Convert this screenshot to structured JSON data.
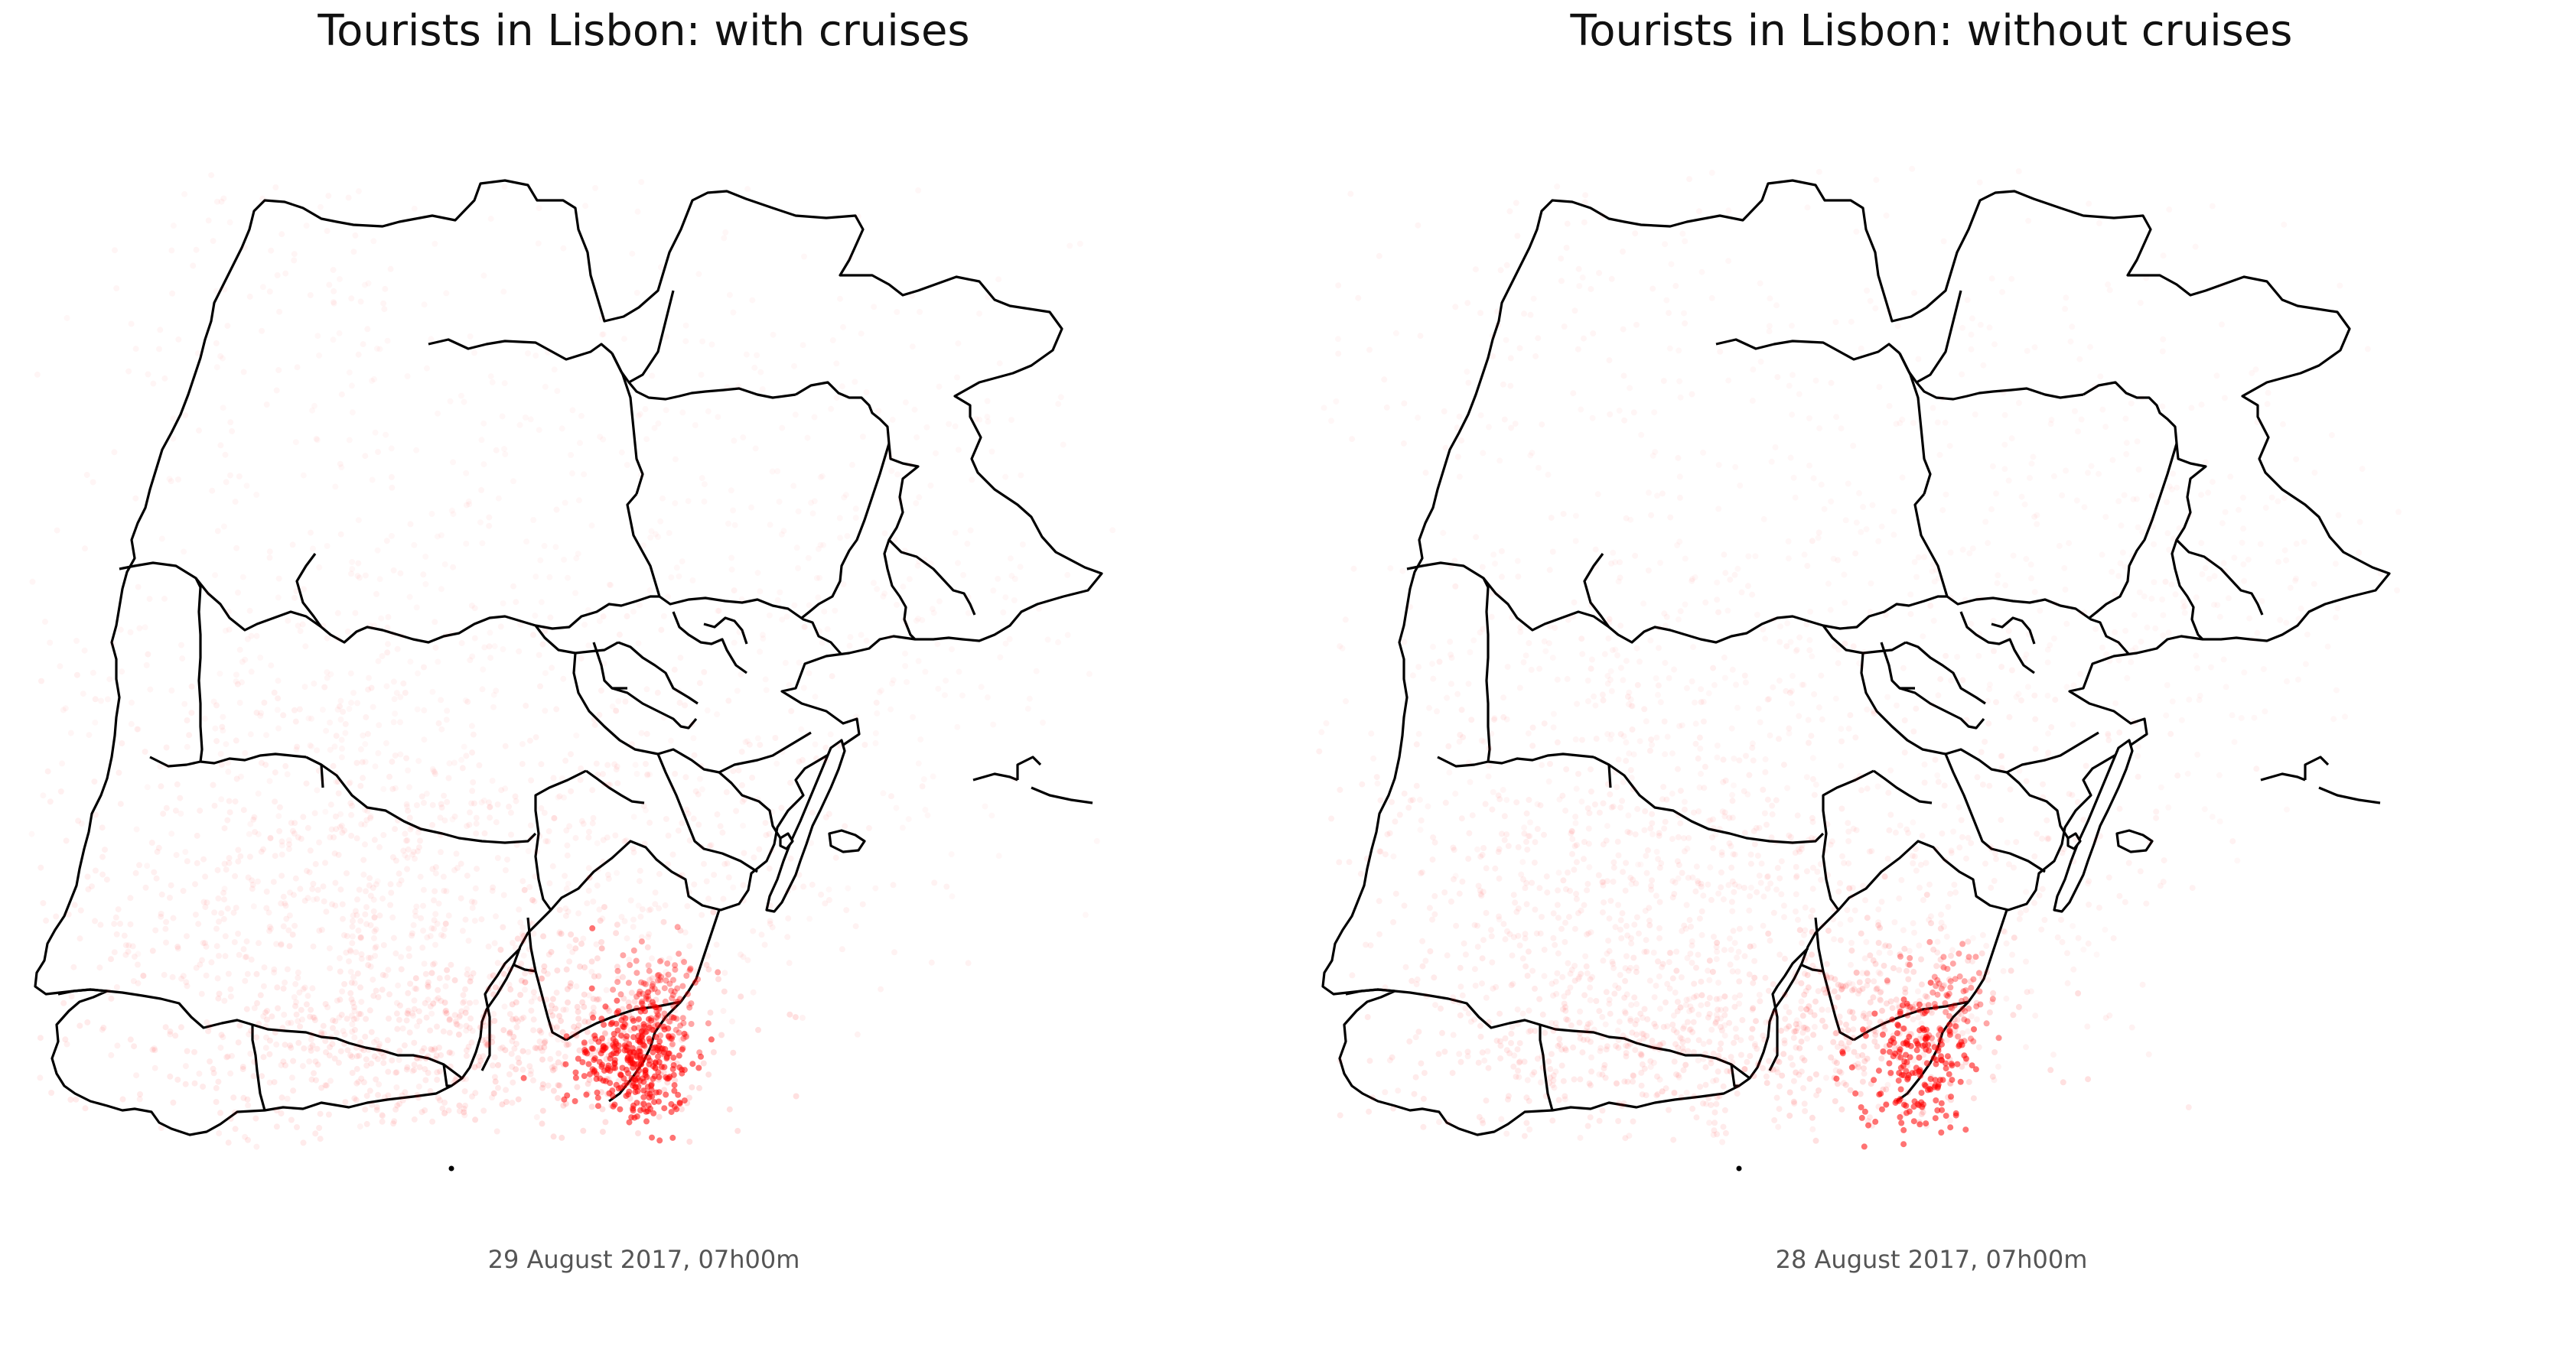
{
  "colors": {
    "point": "#ff0000",
    "boundary": "#000000",
    "background": "#ffffff"
  },
  "maps": [
    {
      "title": "Tourists in Lisbon: with cruises",
      "caption": "29 August 2017, 07h00m",
      "density_scale": 1.0
    },
    {
      "title": "Tourists in Lisbon: without cruises",
      "caption": "28 August 2017, 07h00m",
      "density_scale": 0.6
    }
  ]
}
